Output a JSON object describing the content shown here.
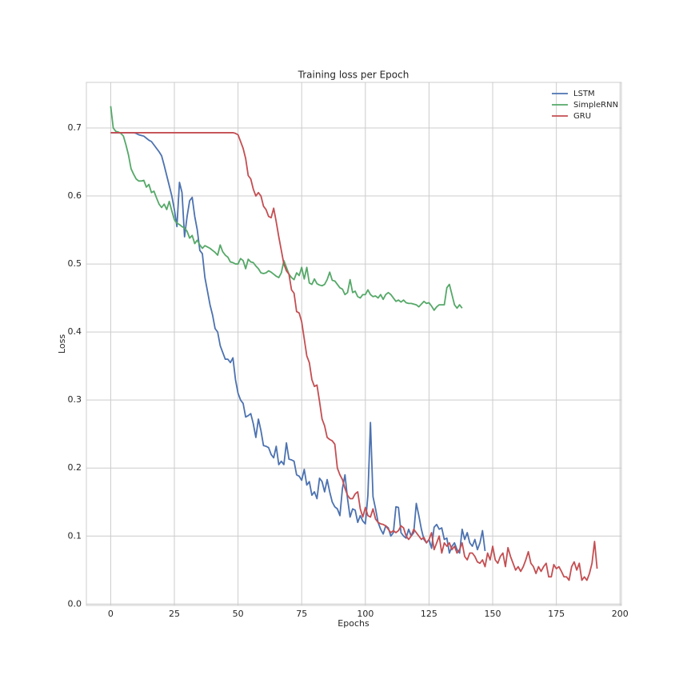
{
  "chart_data": {
    "type": "line",
    "title": "Training loss per Epoch",
    "xlabel": "Epochs",
    "ylabel": "Loss",
    "xlim": [
      -9.55,
      200.55
    ],
    "ylim": [
      -0.002,
      0.767
    ],
    "xticks": [
      0,
      25,
      50,
      75,
      100,
      125,
      150,
      175,
      200
    ],
    "yticks": [
      {
        "value": 0,
        "label": "0.0"
      },
      0.1,
      0.2,
      0.3,
      0.4,
      0.5,
      0.6,
      0.7
    ],
    "grid": true,
    "legend": "upper right",
    "series": [
      {
        "name": "LSTM",
        "color": "#4c72b0",
        "values": [
          0.693,
          0.693,
          0.693,
          0.693,
          0.693,
          0.693,
          0.693,
          0.693,
          0.693,
          0.693,
          0.692,
          0.69,
          0.689,
          0.688,
          0.685,
          0.682,
          0.68,
          0.675,
          0.67,
          0.665,
          0.659,
          0.645,
          0.63,
          0.615,
          0.6,
          0.58,
          0.555,
          0.62,
          0.605,
          0.54,
          0.57,
          0.593,
          0.598,
          0.57,
          0.55,
          0.52,
          0.515,
          0.48,
          0.46,
          0.44,
          0.425,
          0.405,
          0.4,
          0.38,
          0.37,
          0.36,
          0.36,
          0.355,
          0.362,
          0.33,
          0.31,
          0.3,
          0.295,
          0.275,
          0.277,
          0.28,
          0.265,
          0.245,
          0.272,
          0.255,
          0.233,
          0.232,
          0.23,
          0.22,
          0.215,
          0.232,
          0.205,
          0.21,
          0.205,
          0.237,
          0.213,
          0.212,
          0.21,
          0.19,
          0.188,
          0.182,
          0.198,
          0.175,
          0.18,
          0.16,
          0.165,
          0.155,
          0.185,
          0.18,
          0.165,
          0.183,
          0.165,
          0.15,
          0.143,
          0.14,
          0.13,
          0.17,
          0.19,
          0.155,
          0.128,
          0.14,
          0.138,
          0.12,
          0.13,
          0.122,
          0.118,
          0.16,
          0.267,
          0.158,
          0.14,
          0.12,
          0.11,
          0.103,
          0.115,
          0.112,
          0.1,
          0.105,
          0.143,
          0.142,
          0.105,
          0.1,
          0.097,
          0.11,
          0.1,
          0.105,
          0.148,
          0.13,
          0.11,
          0.095,
          0.09,
          0.095,
          0.082,
          0.113,
          0.117,
          0.11,
          0.112,
          0.095,
          0.097,
          0.075,
          0.085,
          0.09,
          0.08,
          0.075,
          0.11,
          0.095,
          0.105,
          0.09,
          0.085,
          0.095,
          0.08,
          0.09,
          0.108,
          0.078
        ]
      },
      {
        "name": "SimpleRNN",
        "color": "#55a868",
        "values": [
          0.732,
          0.7,
          0.695,
          0.694,
          0.692,
          0.688,
          0.675,
          0.66,
          0.64,
          0.632,
          0.625,
          0.622,
          0.622,
          0.623,
          0.613,
          0.617,
          0.605,
          0.607,
          0.597,
          0.588,
          0.583,
          0.588,
          0.58,
          0.592,
          0.578,
          0.565,
          0.56,
          0.558,
          0.555,
          0.553,
          0.548,
          0.538,
          0.542,
          0.53,
          0.535,
          0.528,
          0.523,
          0.527,
          0.525,
          0.523,
          0.52,
          0.517,
          0.513,
          0.528,
          0.518,
          0.513,
          0.51,
          0.503,
          0.502,
          0.5,
          0.5,
          0.508,
          0.505,
          0.493,
          0.507,
          0.503,
          0.502,
          0.497,
          0.493,
          0.487,
          0.486,
          0.487,
          0.49,
          0.488,
          0.485,
          0.482,
          0.48,
          0.487,
          0.505,
          0.495,
          0.485,
          0.48,
          0.477,
          0.487,
          0.483,
          0.495,
          0.478,
          0.495,
          0.472,
          0.47,
          0.478,
          0.471,
          0.469,
          0.468,
          0.47,
          0.477,
          0.488,
          0.476,
          0.475,
          0.47,
          0.465,
          0.463,
          0.455,
          0.458,
          0.477,
          0.458,
          0.46,
          0.452,
          0.45,
          0.455,
          0.455,
          0.462,
          0.455,
          0.452,
          0.453,
          0.45,
          0.455,
          0.448,
          0.455,
          0.458,
          0.455,
          0.45,
          0.445,
          0.447,
          0.444,
          0.447,
          0.443,
          0.442,
          0.442,
          0.441,
          0.44,
          0.437,
          0.441,
          0.445,
          0.442,
          0.443,
          0.438,
          0.432,
          0.437,
          0.44,
          0.44,
          0.44,
          0.465,
          0.47,
          0.455,
          0.44,
          0.435,
          0.44,
          0.435
        ]
      },
      {
        "name": "GRU",
        "color": "#c44e52",
        "values": [
          0.693,
          0.693,
          0.693,
          0.693,
          0.693,
          0.693,
          0.693,
          0.693,
          0.693,
          0.693,
          0.693,
          0.693,
          0.693,
          0.693,
          0.693,
          0.693,
          0.693,
          0.693,
          0.693,
          0.693,
          0.693,
          0.693,
          0.693,
          0.693,
          0.693,
          0.693,
          0.693,
          0.693,
          0.693,
          0.693,
          0.693,
          0.693,
          0.693,
          0.693,
          0.693,
          0.693,
          0.693,
          0.693,
          0.693,
          0.693,
          0.693,
          0.693,
          0.693,
          0.693,
          0.693,
          0.693,
          0.693,
          0.693,
          0.693,
          0.692,
          0.69,
          0.68,
          0.67,
          0.655,
          0.63,
          0.625,
          0.61,
          0.6,
          0.605,
          0.6,
          0.585,
          0.58,
          0.57,
          0.568,
          0.582,
          0.562,
          0.54,
          0.52,
          0.5,
          0.49,
          0.485,
          0.462,
          0.457,
          0.43,
          0.428,
          0.415,
          0.39,
          0.365,
          0.355,
          0.33,
          0.32,
          0.322,
          0.298,
          0.272,
          0.262,
          0.245,
          0.242,
          0.24,
          0.235,
          0.2,
          0.19,
          0.183,
          0.17,
          0.16,
          0.155,
          0.155,
          0.162,
          0.165,
          0.14,
          0.128,
          0.142,
          0.13,
          0.128,
          0.14,
          0.125,
          0.12,
          0.118,
          0.117,
          0.115,
          0.11,
          0.105,
          0.108,
          0.105,
          0.108,
          0.115,
          0.112,
          0.1,
          0.095,
          0.1,
          0.11,
          0.105,
          0.1,
          0.095,
          0.098,
          0.09,
          0.095,
          0.105,
          0.08,
          0.09,
          0.1,
          0.075,
          0.09,
          0.085,
          0.09,
          0.08,
          0.085,
          0.075,
          0.08,
          0.09,
          0.07,
          0.065,
          0.075,
          0.075,
          0.07,
          0.062,
          0.06,
          0.065,
          0.055,
          0.075,
          0.065,
          0.085,
          0.065,
          0.06,
          0.07,
          0.075,
          0.055,
          0.083,
          0.07,
          0.06,
          0.05,
          0.055,
          0.048,
          0.055,
          0.065,
          0.077,
          0.06,
          0.055,
          0.045,
          0.055,
          0.048,
          0.055,
          0.06,
          0.04,
          0.04,
          0.058,
          0.052,
          0.055,
          0.048,
          0.04,
          0.04,
          0.035,
          0.055,
          0.062,
          0.05,
          0.06,
          0.035,
          0.04,
          0.035,
          0.045,
          0.06,
          0.092,
          0.052
        ]
      }
    ]
  }
}
